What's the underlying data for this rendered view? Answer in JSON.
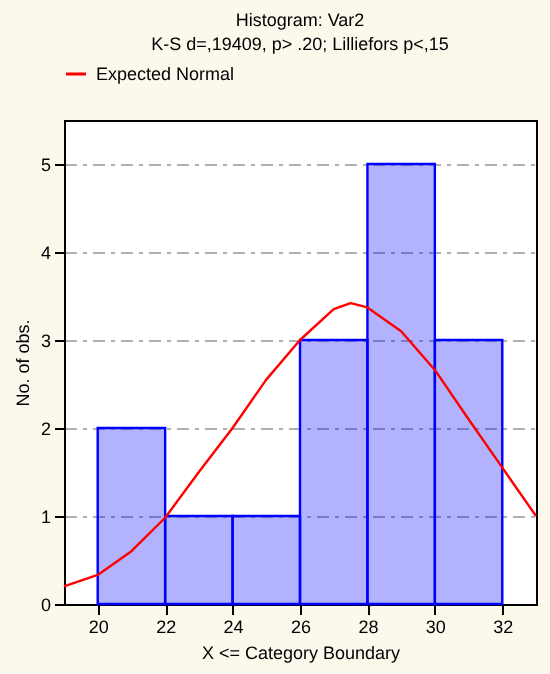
{
  "chart_data": {
    "type": "histogram",
    "title": "Histogram: Var2",
    "subtitle": "K-S d=,19409, p> .20; Lilliefors p<,15",
    "xlabel": "X <= Category Boundary",
    "ylabel": "No. of obs.",
    "bins": [
      20,
      22,
      24,
      26,
      28,
      30,
      32
    ],
    "values": [
      2,
      1,
      1,
      3,
      5,
      3
    ],
    "color": "#0000ff",
    "series": [
      {
        "name": "Expected Normal",
        "type": "line",
        "color": "#ff0000",
        "x": [
          19,
          20,
          21,
          22,
          23,
          24,
          25,
          26,
          27,
          27.5,
          28,
          29,
          30,
          31,
          32,
          33
        ],
        "values": [
          0.2,
          0.33,
          0.6,
          0.98,
          1.5,
          2.0,
          2.55,
          3.0,
          3.35,
          3.42,
          3.37,
          3.1,
          2.66,
          2.1,
          1.55,
          1.0
        ]
      }
    ],
    "xlim": [
      19,
      33
    ],
    "xticks": [
      20,
      22,
      24,
      26,
      28,
      30,
      32
    ],
    "ylim": [
      0,
      5.5
    ],
    "yticks": [
      0,
      1,
      2,
      3,
      4,
      5
    ],
    "grid": "y",
    "legend": "top"
  }
}
